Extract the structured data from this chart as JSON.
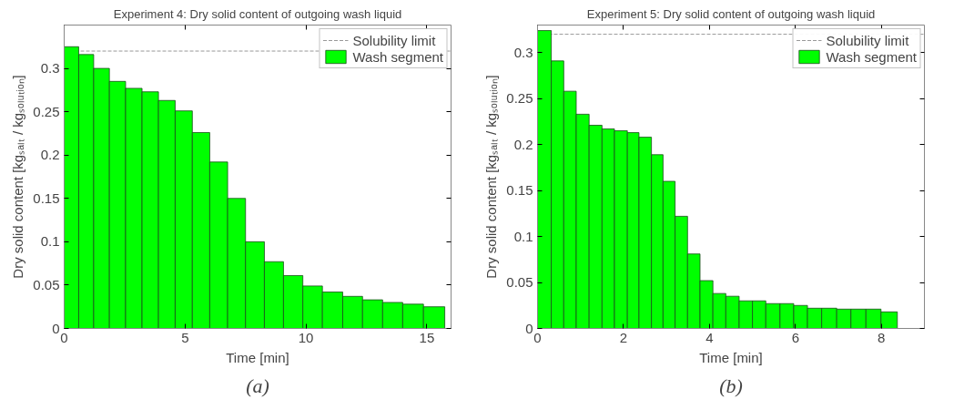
{
  "chart_data": [
    {
      "type": "histogram",
      "title": "Experiment 4: Dry solid content of outgoing wash liquid",
      "xlabel": "Time [min]",
      "ylabel": "Dry solid content [kgₛₐₗₜ / kgₛₒₗᵤₜᵢₒₙ]",
      "bins": [
        0,
        0.6,
        1.22,
        1.87,
        2.54,
        3.22,
        3.9,
        4.59,
        5.3,
        6.02,
        6.76,
        7.5,
        8.28,
        9.07,
        9.87,
        10.68,
        11.52,
        12.34,
        13.17,
        14.0,
        14.86,
        15.74
      ],
      "series": [
        {
          "name": "Wash segment",
          "color": "#00ff00",
          "values": [
            0.325,
            0.316,
            0.3,
            0.285,
            0.277,
            0.273,
            0.263,
            0.251,
            0.226,
            0.192,
            0.15,
            0.1,
            0.077,
            0.061,
            0.049,
            0.042,
            0.037,
            0.033,
            0.03,
            0.028,
            0.025
          ]
        }
      ],
      "ref_lines": [
        {
          "axis": "y",
          "value": 0.32,
          "label": "Solubility limit",
          "color": "#999999",
          "line_style": "dashed"
        }
      ],
      "xlim": [
        0,
        16
      ],
      "ylim": [
        0,
        0.35
      ],
      "xticks": [
        0,
        5,
        10,
        15
      ],
      "yticks": [
        0,
        0.05,
        0.1,
        0.15,
        0.2,
        0.25,
        0.3
      ],
      "grid": false,
      "legend": "top right",
      "annotations": [
        "(a)"
      ]
    },
    {
      "type": "histogram",
      "title": "Experiment 5: Dry solid content of outgoing wash liquid",
      "xlabel": "Time [min]",
      "ylabel": "Dry solid content [kgₛₐₗₜ / kgₛₒₗᵤₜᵢₒₙ]",
      "bins": [
        0,
        0.32,
        0.61,
        0.9,
        1.2,
        1.5,
        1.79,
        2.09,
        2.36,
        2.65,
        2.92,
        3.2,
        3.49,
        3.78,
        4.08,
        4.38,
        4.69,
        5.0,
        5.31,
        5.64,
        5.96,
        6.28,
        6.61,
        6.96,
        7.29,
        7.64,
        7.99,
        8.37
      ],
      "series": [
        {
          "name": "Wash segment",
          "color": "#00ff00",
          "values": [
            0.324,
            0.291,
            0.258,
            0.233,
            0.221,
            0.217,
            0.215,
            0.213,
            0.208,
            0.189,
            0.16,
            0.122,
            0.081,
            0.052,
            0.038,
            0.035,
            0.03,
            0.03,
            0.027,
            0.027,
            0.025,
            0.022,
            0.022,
            0.021,
            0.021,
            0.021,
            0.018
          ]
        }
      ],
      "ref_lines": [
        {
          "axis": "y",
          "value": 0.32,
          "label": "Solubility limit",
          "color": "#999999",
          "line_style": "dashed"
        }
      ],
      "xlim": [
        0,
        9
      ],
      "ylim": [
        0,
        0.33
      ],
      "xticks": [
        0,
        2,
        4,
        6,
        8
      ],
      "yticks": [
        0,
        0.05,
        0.1,
        0.15,
        0.2,
        0.25,
        0.3
      ],
      "grid": false,
      "legend": "top right",
      "annotations": [
        "(b)"
      ]
    }
  ]
}
